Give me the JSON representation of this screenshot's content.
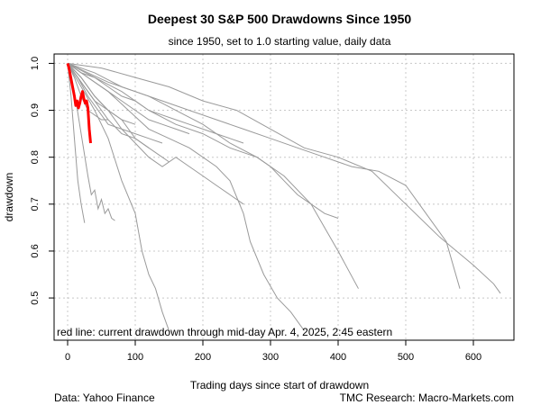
{
  "chart_data": {
    "type": "line",
    "title": "Deepest 30 S&P 500 Drawdowns Since 1950",
    "subtitle": "since 1950, set to 1.0 starting value, daily data",
    "xlabel": "Trading days since start of drawdown",
    "ylabel": "drawdown",
    "xlim": [
      -20,
      660
    ],
    "ylim": [
      0.41,
      1.02
    ],
    "x_ticks": [
      0,
      100,
      200,
      300,
      400,
      500,
      600
    ],
    "y_ticks": [
      0.5,
      0.6,
      0.7,
      0.8,
      0.9,
      1.0
    ],
    "y_tick_labels": [
      "0.5",
      "0.6",
      "0.7",
      "0.8",
      "0.9",
      "1.0"
    ],
    "grid": true,
    "annotation": "red line: current drawdown through mid-day Apr. 4, 2025, 2:45 eastern",
    "colors": {
      "historical": "#9a9a9a",
      "current": "#ff0000"
    },
    "series": [
      {
        "x": [
          0,
          10,
          20,
          30,
          35,
          40,
          45,
          50,
          55,
          60,
          65,
          70
        ],
        "y": [
          1.0,
          0.94,
          0.85,
          0.76,
          0.72,
          0.73,
          0.69,
          0.71,
          0.68,
          0.69,
          0.67,
          0.665
        ]
      },
      {
        "x": [
          0,
          5,
          10,
          15,
          20,
          25
        ],
        "y": [
          1.0,
          0.93,
          0.84,
          0.75,
          0.7,
          0.66
        ]
      },
      {
        "x": [
          0,
          20,
          40,
          60,
          80,
          100,
          110,
          120,
          130,
          140,
          150
        ],
        "y": [
          1.0,
          0.95,
          0.9,
          0.84,
          0.75,
          0.68,
          0.6,
          0.55,
          0.52,
          0.47,
          0.43
        ]
      },
      {
        "x": [
          0,
          30,
          60,
          90,
          120,
          150,
          180,
          200,
          220,
          240,
          260,
          270,
          290,
          310,
          330,
          350
        ],
        "y": [
          1.0,
          0.97,
          0.94,
          0.9,
          0.86,
          0.84,
          0.82,
          0.8,
          0.78,
          0.75,
          0.68,
          0.62,
          0.55,
          0.5,
          0.47,
          0.43
        ]
      },
      {
        "x": [
          0,
          40,
          80,
          120,
          160,
          200,
          240,
          280,
          320,
          360,
          400,
          430
        ],
        "y": [
          1.0,
          0.98,
          0.95,
          0.93,
          0.9,
          0.87,
          0.83,
          0.8,
          0.76,
          0.7,
          0.6,
          0.52
        ]
      },
      {
        "x": [
          0,
          50,
          100,
          150,
          200,
          250,
          300,
          350,
          400,
          450,
          500,
          550,
          600,
          630,
          640
        ],
        "y": [
          1.0,
          0.99,
          0.97,
          0.95,
          0.92,
          0.9,
          0.86,
          0.82,
          0.8,
          0.77,
          0.7,
          0.63,
          0.57,
          0.53,
          0.51
        ]
      },
      {
        "x": [
          0,
          40,
          80,
          120,
          160,
          200,
          240,
          280,
          300,
          320,
          340,
          360,
          380,
          400
        ],
        "y": [
          1.0,
          0.97,
          0.94,
          0.9,
          0.87,
          0.85,
          0.82,
          0.8,
          0.78,
          0.75,
          0.72,
          0.7,
          0.68,
          0.67
        ]
      },
      {
        "x": [
          0,
          30,
          60,
          100,
          140,
          180,
          220,
          260,
          300,
          340,
          380,
          420,
          460,
          500,
          520,
          560,
          580
        ],
        "y": [
          1.0,
          0.98,
          0.96,
          0.94,
          0.92,
          0.9,
          0.88,
          0.86,
          0.84,
          0.82,
          0.8,
          0.78,
          0.77,
          0.74,
          0.7,
          0.62,
          0.52
        ]
      },
      {
        "x": [
          0,
          20,
          40,
          60,
          80,
          100,
          120,
          140,
          160,
          180,
          200,
          220,
          240,
          260
        ],
        "y": [
          1.0,
          0.96,
          0.92,
          0.9,
          0.86,
          0.83,
          0.8,
          0.78,
          0.8,
          0.78,
          0.76,
          0.74,
          0.72,
          0.7
        ]
      },
      {
        "x": [
          0,
          20,
          40,
          60,
          80,
          100,
          120,
          140,
          150
        ],
        "y": [
          1.0,
          0.97,
          0.93,
          0.9,
          0.88,
          0.84,
          0.82,
          0.8,
          0.79
        ]
      },
      {
        "x": [
          0,
          20,
          40,
          60,
          80,
          100,
          120
        ],
        "y": [
          1.0,
          0.96,
          0.92,
          0.88,
          0.85,
          0.84,
          0.82
        ]
      },
      {
        "x": [
          0,
          15,
          30,
          45,
          60,
          80,
          100,
          120,
          140
        ],
        "y": [
          1.0,
          0.97,
          0.93,
          0.9,
          0.87,
          0.86,
          0.85,
          0.84,
          0.83
        ]
      },
      {
        "x": [
          0,
          20,
          40,
          60,
          80,
          100,
          120,
          140,
          160,
          180
        ],
        "y": [
          1.0,
          0.98,
          0.96,
          0.94,
          0.92,
          0.9,
          0.88,
          0.87,
          0.86,
          0.85
        ]
      },
      {
        "x": [
          0,
          20,
          40,
          60,
          80,
          100,
          120,
          140,
          160,
          180,
          200,
          220,
          240,
          260
        ],
        "y": [
          1.0,
          0.98,
          0.97,
          0.95,
          0.93,
          0.92,
          0.9,
          0.89,
          0.88,
          0.87,
          0.86,
          0.85,
          0.84,
          0.83
        ]
      },
      {
        "x": [
          0,
          20,
          40,
          60,
          80,
          100
        ],
        "y": [
          1.0,
          0.97,
          0.93,
          0.9,
          0.88,
          0.87
        ]
      },
      {
        "x": [
          0,
          10,
          20,
          30,
          40,
          50,
          60
        ],
        "y": [
          1.0,
          0.97,
          0.93,
          0.9,
          0.89,
          0.88,
          0.88
        ]
      }
    ],
    "current": {
      "name": "current drawdown",
      "x": [
        0,
        2,
        4,
        6,
        8,
        10,
        12,
        14,
        16,
        18,
        20,
        22,
        24,
        26,
        28,
        30,
        32,
        34
      ],
      "y": [
        1.0,
        0.99,
        0.975,
        0.96,
        0.945,
        0.93,
        0.91,
        0.92,
        0.905,
        0.915,
        0.93,
        0.94,
        0.925,
        0.915,
        0.92,
        0.905,
        0.86,
        0.83
      ]
    }
  },
  "footer": {
    "left": "Data: Yahoo Finance",
    "right": "TMC Research: Macro-Markets.com"
  }
}
